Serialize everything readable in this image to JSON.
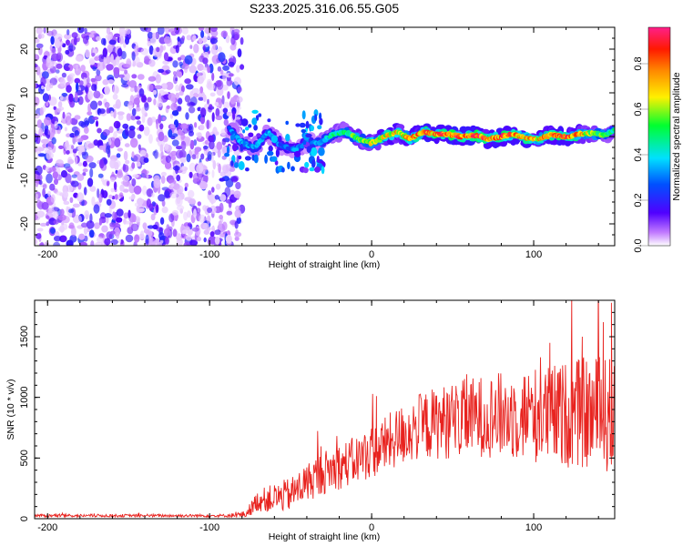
{
  "title": "S233.2025.316.06.55.G05",
  "chart_data": [
    {
      "type": "heatmap",
      "xlabel": "Height of straight line (km)",
      "ylabel": "Frequency (Hz)",
      "xlim": [
        -208,
        150
      ],
      "ylim": [
        -25,
        25
      ],
      "xticks": [
        -200,
        -100,
        0,
        100
      ],
      "xtick_labels": [
        "-200",
        "-100",
        "0",
        "100"
      ],
      "yticks": [
        -20,
        -10,
        0,
        10,
        20
      ],
      "ytick_labels": [
        "-20",
        "-10",
        "0",
        "10",
        "20"
      ],
      "noise_region_x": [
        -208,
        -80
      ],
      "signal_track": {
        "x": [
          -88,
          -80,
          -72,
          -64,
          -56,
          -48,
          -40,
          -32,
          -24,
          -16,
          -8,
          0,
          8,
          16,
          24,
          32,
          40,
          48,
          56,
          64,
          72,
          80,
          88,
          96,
          104,
          112,
          120,
          128,
          136,
          144,
          150
        ],
        "freq": [
          2,
          -1.5,
          -2.5,
          1,
          -2,
          -3,
          -1.5,
          -1.5,
          0.5,
          1,
          -0.5,
          -1.5,
          0,
          1,
          -0.5,
          1,
          0.5,
          0.5,
          0,
          0.3,
          -0.7,
          0,
          0.5,
          -0.5,
          -0.5,
          0.5,
          -0.2,
          0.6,
          0.8,
          0.3,
          1.5
        ],
        "amplitude": [
          0.3,
          0.4,
          0.35,
          0.35,
          0.3,
          0.3,
          0.3,
          0.35,
          0.45,
          0.55,
          0.6,
          0.65,
          0.7,
          0.75,
          0.8,
          0.85,
          0.85,
          0.9,
          0.85,
          0.9,
          0.85,
          0.85,
          0.85,
          0.8,
          0.75,
          0.85,
          0.85,
          0.8,
          0.6,
          0.55,
          0.5
        ]
      },
      "colorbar": {
        "label": "Normalized spectral amplitude",
        "range": [
          0,
          0.96
        ],
        "ticks": [
          0.0,
          0.2,
          0.4,
          0.6,
          0.8
        ],
        "tick_labels": [
          "0.0",
          "0.2",
          "0.4",
          "0.6",
          "0.8"
        ]
      }
    },
    {
      "type": "line",
      "xlabel": "Height of straight line (km)",
      "ylabel": "SNR (10 * v/v)",
      "xlim": [
        -208,
        150
      ],
      "ylim": [
        0,
        1800
      ],
      "xticks": [
        -200,
        -100,
        0,
        100
      ],
      "xtick_labels": [
        "-200",
        "-100",
        "0",
        "100"
      ],
      "yticks": [
        0,
        500,
        1000,
        1500
      ],
      "ytick_labels": [
        "0",
        "500",
        "1000",
        "1500"
      ],
      "color": "#e8231f",
      "series": [
        {
          "name": "SNR",
          "x": [
            -208,
            -180,
            -150,
            -120,
            -90,
            -78,
            -70,
            -60,
            -50,
            -40,
            -30,
            -20,
            -10,
            0,
            10,
            20,
            30,
            40,
            50,
            60,
            70,
            80,
            90,
            100,
            110,
            120,
            130,
            140,
            150
          ],
          "base": [
            25,
            25,
            25,
            25,
            25,
            35,
            150,
            170,
            200,
            300,
            380,
            430,
            480,
            550,
            620,
            700,
            760,
            790,
            810,
            830,
            850,
            850,
            860,
            860,
            850,
            860,
            870,
            860,
            850
          ],
          "spread": [
            12,
            12,
            12,
            12,
            12,
            30,
            90,
            120,
            140,
            160,
            180,
            190,
            200,
            220,
            240,
            260,
            280,
            300,
            320,
            330,
            340,
            360,
            380,
            400,
            420,
            440,
            460,
            480,
            500
          ],
          "peaks": [
            {
              "x": 148,
              "y": 1780
            },
            {
              "x": 143,
              "y": 1620
            },
            {
              "x": 130,
              "y": 1500
            },
            {
              "x": 110,
              "y": 1450
            },
            {
              "x": 3,
              "y": 1010
            }
          ]
        }
      ]
    }
  ]
}
